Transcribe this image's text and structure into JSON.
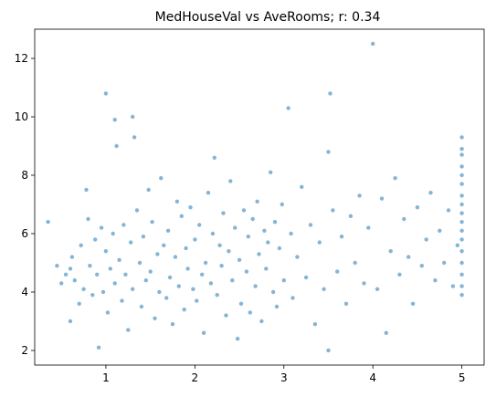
{
  "chart_data": {
    "type": "scatter",
    "title": "MedHouseVal vs AveRooms; r: 0.34",
    "xlabel": "",
    "ylabel": "",
    "xlim": [
      0.2,
      5.25
    ],
    "ylim": [
      1.5,
      13.0
    ],
    "xticks": [
      1,
      2,
      3,
      4,
      5
    ],
    "yticks": [
      2,
      4,
      6,
      8,
      10,
      12
    ],
    "grid": false,
    "marker_color": "#1f77b4",
    "marker_alpha": 0.55,
    "points": [
      [
        0.35,
        6.4
      ],
      [
        0.45,
        4.9
      ],
      [
        0.5,
        4.3
      ],
      [
        0.55,
        4.6
      ],
      [
        0.6,
        4.8
      ],
      [
        0.6,
        3.0
      ],
      [
        0.62,
        5.2
      ],
      [
        0.65,
        4.4
      ],
      [
        0.7,
        3.6
      ],
      [
        0.72,
        5.6
      ],
      [
        0.75,
        4.1
      ],
      [
        0.78,
        7.5
      ],
      [
        0.8,
        6.5
      ],
      [
        0.82,
        4.9
      ],
      [
        0.85,
        3.9
      ],
      [
        0.88,
        5.8
      ],
      [
        0.9,
        4.6
      ],
      [
        0.92,
        2.1
      ],
      [
        0.95,
        6.2
      ],
      [
        0.97,
        4.0
      ],
      [
        1.0,
        10.8
      ],
      [
        1.0,
        5.4
      ],
      [
        1.02,
        3.3
      ],
      [
        1.05,
        4.8
      ],
      [
        1.08,
        6.0
      ],
      [
        1.1,
        9.9
      ],
      [
        1.1,
        4.3
      ],
      [
        1.12,
        9.0
      ],
      [
        1.15,
        5.1
      ],
      [
        1.18,
        3.7
      ],
      [
        1.2,
        6.3
      ],
      [
        1.22,
        4.6
      ],
      [
        1.25,
        2.7
      ],
      [
        1.28,
        5.7
      ],
      [
        1.3,
        10.0
      ],
      [
        1.3,
        4.1
      ],
      [
        1.32,
        9.3
      ],
      [
        1.35,
        6.8
      ],
      [
        1.38,
        5.0
      ],
      [
        1.4,
        3.5
      ],
      [
        1.42,
        5.9
      ],
      [
        1.45,
        4.4
      ],
      [
        1.48,
        7.5
      ],
      [
        1.5,
        4.7
      ],
      [
        1.52,
        6.4
      ],
      [
        1.55,
        3.1
      ],
      [
        1.58,
        5.3
      ],
      [
        1.6,
        4.0
      ],
      [
        1.62,
        7.9
      ],
      [
        1.65,
        5.6
      ],
      [
        1.68,
        3.8
      ],
      [
        1.7,
        6.1
      ],
      [
        1.72,
        4.5
      ],
      [
        1.75,
        2.9
      ],
      [
        1.78,
        5.2
      ],
      [
        1.8,
        7.1
      ],
      [
        1.82,
        4.2
      ],
      [
        1.85,
        6.6
      ],
      [
        1.88,
        3.4
      ],
      [
        1.9,
        5.5
      ],
      [
        1.92,
        4.8
      ],
      [
        1.95,
        6.9
      ],
      [
        1.98,
        4.1
      ],
      [
        2.0,
        5.8
      ],
      [
        2.02,
        3.7
      ],
      [
        2.05,
        6.3
      ],
      [
        2.08,
        4.6
      ],
      [
        2.1,
        2.6
      ],
      [
        2.12,
        5.0
      ],
      [
        2.15,
        7.4
      ],
      [
        2.18,
        4.3
      ],
      [
        2.2,
        6.0
      ],
      [
        2.22,
        8.6
      ],
      [
        2.25,
        3.9
      ],
      [
        2.28,
        5.6
      ],
      [
        2.3,
        4.9
      ],
      [
        2.32,
        6.7
      ],
      [
        2.35,
        3.2
      ],
      [
        2.38,
        5.4
      ],
      [
        2.4,
        7.8
      ],
      [
        2.42,
        4.4
      ],
      [
        2.45,
        6.2
      ],
      [
        2.48,
        2.4
      ],
      [
        2.5,
        5.1
      ],
      [
        2.52,
        3.6
      ],
      [
        2.55,
        6.8
      ],
      [
        2.58,
        4.7
      ],
      [
        2.6,
        5.9
      ],
      [
        2.62,
        3.3
      ],
      [
        2.65,
        6.5
      ],
      [
        2.68,
        4.2
      ],
      [
        2.7,
        7.1
      ],
      [
        2.72,
        5.3
      ],
      [
        2.75,
        3.0
      ],
      [
        2.78,
        6.1
      ],
      [
        2.8,
        4.8
      ],
      [
        2.82,
        5.7
      ],
      [
        2.85,
        8.1
      ],
      [
        2.88,
        4.0
      ],
      [
        2.9,
        6.4
      ],
      [
        2.92,
        3.5
      ],
      [
        2.95,
        5.5
      ],
      [
        2.98,
        7.0
      ],
      [
        3.0,
        4.4
      ],
      [
        3.05,
        10.3
      ],
      [
        3.08,
        6.0
      ],
      [
        3.1,
        3.8
      ],
      [
        3.15,
        5.2
      ],
      [
        3.2,
        7.6
      ],
      [
        3.25,
        4.5
      ],
      [
        3.3,
        6.3
      ],
      [
        3.35,
        2.9
      ],
      [
        3.4,
        5.7
      ],
      [
        3.45,
        4.1
      ],
      [
        3.5,
        8.8
      ],
      [
        3.5,
        2.0
      ],
      [
        3.52,
        10.8
      ],
      [
        3.55,
        6.8
      ],
      [
        3.6,
        4.7
      ],
      [
        3.65,
        5.9
      ],
      [
        3.7,
        3.6
      ],
      [
        3.75,
        6.6
      ],
      [
        3.8,
        5.0
      ],
      [
        3.85,
        7.3
      ],
      [
        3.9,
        4.3
      ],
      [
        3.95,
        6.2
      ],
      [
        4.0,
        12.5
      ],
      [
        4.05,
        4.1
      ],
      [
        4.1,
        7.2
      ],
      [
        4.15,
        2.6
      ],
      [
        4.2,
        5.4
      ],
      [
        4.25,
        7.9
      ],
      [
        4.3,
        4.6
      ],
      [
        4.35,
        6.5
      ],
      [
        4.4,
        5.2
      ],
      [
        4.45,
        3.6
      ],
      [
        4.5,
        6.9
      ],
      [
        4.55,
        4.9
      ],
      [
        4.6,
        5.8
      ],
      [
        4.65,
        7.4
      ],
      [
        4.7,
        4.4
      ],
      [
        4.75,
        6.1
      ],
      [
        4.8,
        5.0
      ],
      [
        4.85,
        6.8
      ],
      [
        4.9,
        4.2
      ],
      [
        4.95,
        5.6
      ],
      [
        5.0,
        9.3
      ],
      [
        5.0,
        8.9
      ],
      [
        5.0,
        8.7
      ],
      [
        5.0,
        8.3
      ],
      [
        5.0,
        8.0
      ],
      [
        5.0,
        7.7
      ],
      [
        5.0,
        7.3
      ],
      [
        5.0,
        7.0
      ],
      [
        5.0,
        6.7
      ],
      [
        5.0,
        6.4
      ],
      [
        5.0,
        6.1
      ],
      [
        5.0,
        5.8
      ],
      [
        5.0,
        5.4
      ],
      [
        5.0,
        5.0
      ],
      [
        5.0,
        4.6
      ],
      [
        5.0,
        4.2
      ],
      [
        5.0,
        3.9
      ]
    ]
  }
}
